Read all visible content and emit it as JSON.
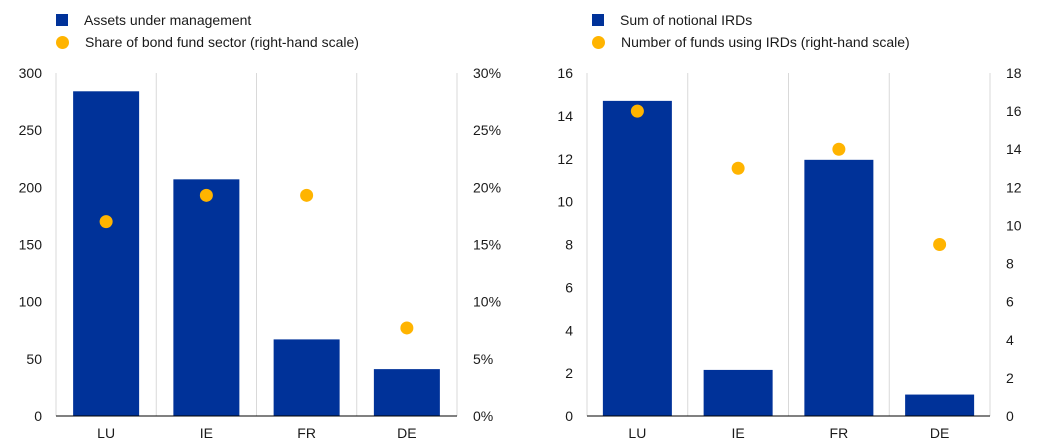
{
  "colors": {
    "bar": "#003299",
    "dot": "#FFB400",
    "grid": "#d9d9d9"
  },
  "chart_data": [
    {
      "type": "bar",
      "categories": [
        "LU",
        "IE",
        "FR",
        "DE"
      ],
      "legend": [
        {
          "label": "Assets under management",
          "marker": "square",
          "color": "#003299"
        },
        {
          "label": "Share of bond fund sector (right-hand scale)",
          "marker": "dot",
          "color": "#FFB400"
        }
      ],
      "series": [
        {
          "name": "Assets under management",
          "axis": "left",
          "type": "bar",
          "values": [
            284,
            207,
            67,
            41
          ]
        },
        {
          "name": "Share of bond fund sector (right-hand scale)",
          "axis": "right",
          "type": "scatter",
          "values": [
            17,
            19.3,
            19.3,
            7.7
          ]
        }
      ],
      "ylim_left": [
        0,
        300
      ],
      "yticks_left": [
        "0",
        "50",
        "100",
        "150",
        "200",
        "250",
        "300"
      ],
      "ylim_right": [
        0,
        30
      ],
      "yticks_right": [
        "0%",
        "5%",
        "10%",
        "15%",
        "20%",
        "25%",
        "30%"
      ],
      "grid": "vertical",
      "legend_position": "top-left"
    },
    {
      "type": "bar",
      "categories": [
        "LU",
        "IE",
        "FR",
        "DE"
      ],
      "legend": [
        {
          "label": "Sum of notional IRDs",
          "marker": "square",
          "color": "#003299"
        },
        {
          "label": "Number of funds using IRDs (right-hand scale)",
          "marker": "dot",
          "color": "#FFB400"
        }
      ],
      "series": [
        {
          "name": "Sum of notional IRDs",
          "axis": "left",
          "type": "bar",
          "values": [
            14.7,
            2.15,
            11.95,
            1.0
          ]
        },
        {
          "name": "Number of funds using IRDs (right-hand scale)",
          "axis": "right",
          "type": "scatter",
          "values": [
            16,
            13,
            14,
            9
          ]
        }
      ],
      "ylim_left": [
        0,
        16
      ],
      "yticks_left": [
        "0",
        "2",
        "4",
        "6",
        "8",
        "10",
        "12",
        "14",
        "16"
      ],
      "ylim_right": [
        0,
        18
      ],
      "yticks_right": [
        "0",
        "2",
        "4",
        "6",
        "8",
        "10",
        "12",
        "14",
        "16",
        "18"
      ],
      "grid": "vertical",
      "legend_position": "top-left"
    }
  ]
}
